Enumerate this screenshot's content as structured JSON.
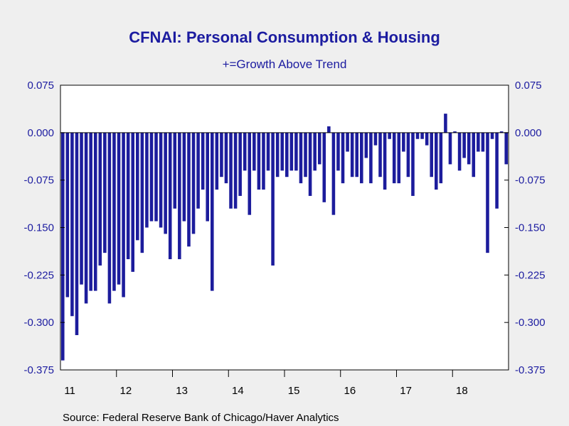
{
  "chart_data": {
    "type": "bar",
    "title": "CFNAI: Personal Consumption & Housing",
    "subtitle": "+=Growth Above Trend",
    "source": "Source:  Federal Reserve Bank of Chicago/Haver Analytics",
    "ylim": [
      -0.375,
      0.075
    ],
    "yticks": [
      "0.075",
      "0.000",
      "-0.075",
      "-0.150",
      "-0.225",
      "-0.300",
      "-0.375"
    ],
    "ytick_values": [
      0.075,
      0.0,
      -0.075,
      -0.15,
      -0.225,
      -0.3,
      -0.375
    ],
    "x_labels": [
      "11",
      "12",
      "13",
      "14",
      "15",
      "16",
      "17",
      "18"
    ],
    "x_start": "2011-01",
    "bar_color": "#1c1c9c",
    "values": [
      -0.36,
      -0.26,
      -0.29,
      -0.32,
      -0.24,
      -0.27,
      -0.25,
      -0.25,
      -0.21,
      -0.19,
      -0.27,
      -0.25,
      -0.24,
      -0.26,
      -0.2,
      -0.22,
      -0.17,
      -0.19,
      -0.15,
      -0.14,
      -0.14,
      -0.15,
      -0.16,
      -0.2,
      -0.12,
      -0.2,
      -0.14,
      -0.18,
      -0.16,
      -0.12,
      -0.09,
      -0.14,
      -0.25,
      -0.09,
      -0.07,
      -0.08,
      -0.12,
      -0.12,
      -0.1,
      -0.06,
      -0.13,
      -0.06,
      -0.09,
      -0.09,
      -0.06,
      -0.21,
      -0.07,
      -0.06,
      -0.07,
      -0.06,
      -0.06,
      -0.08,
      -0.07,
      -0.1,
      -0.06,
      -0.05,
      -0.11,
      0.01,
      -0.13,
      -0.06,
      -0.08,
      -0.03,
      -0.07,
      -0.07,
      -0.08,
      -0.04,
      -0.08,
      -0.02,
      -0.07,
      -0.09,
      -0.01,
      -0.08,
      -0.08,
      -0.03,
      -0.07,
      -0.1,
      -0.01,
      -0.01,
      -0.02,
      -0.07,
      -0.09,
      -0.08,
      0.03,
      -0.05,
      0.002,
      -0.06,
      -0.04,
      -0.05,
      -0.07,
      -0.03,
      -0.03,
      -0.19,
      -0.01,
      -0.12,
      0.002,
      -0.05
    ]
  }
}
